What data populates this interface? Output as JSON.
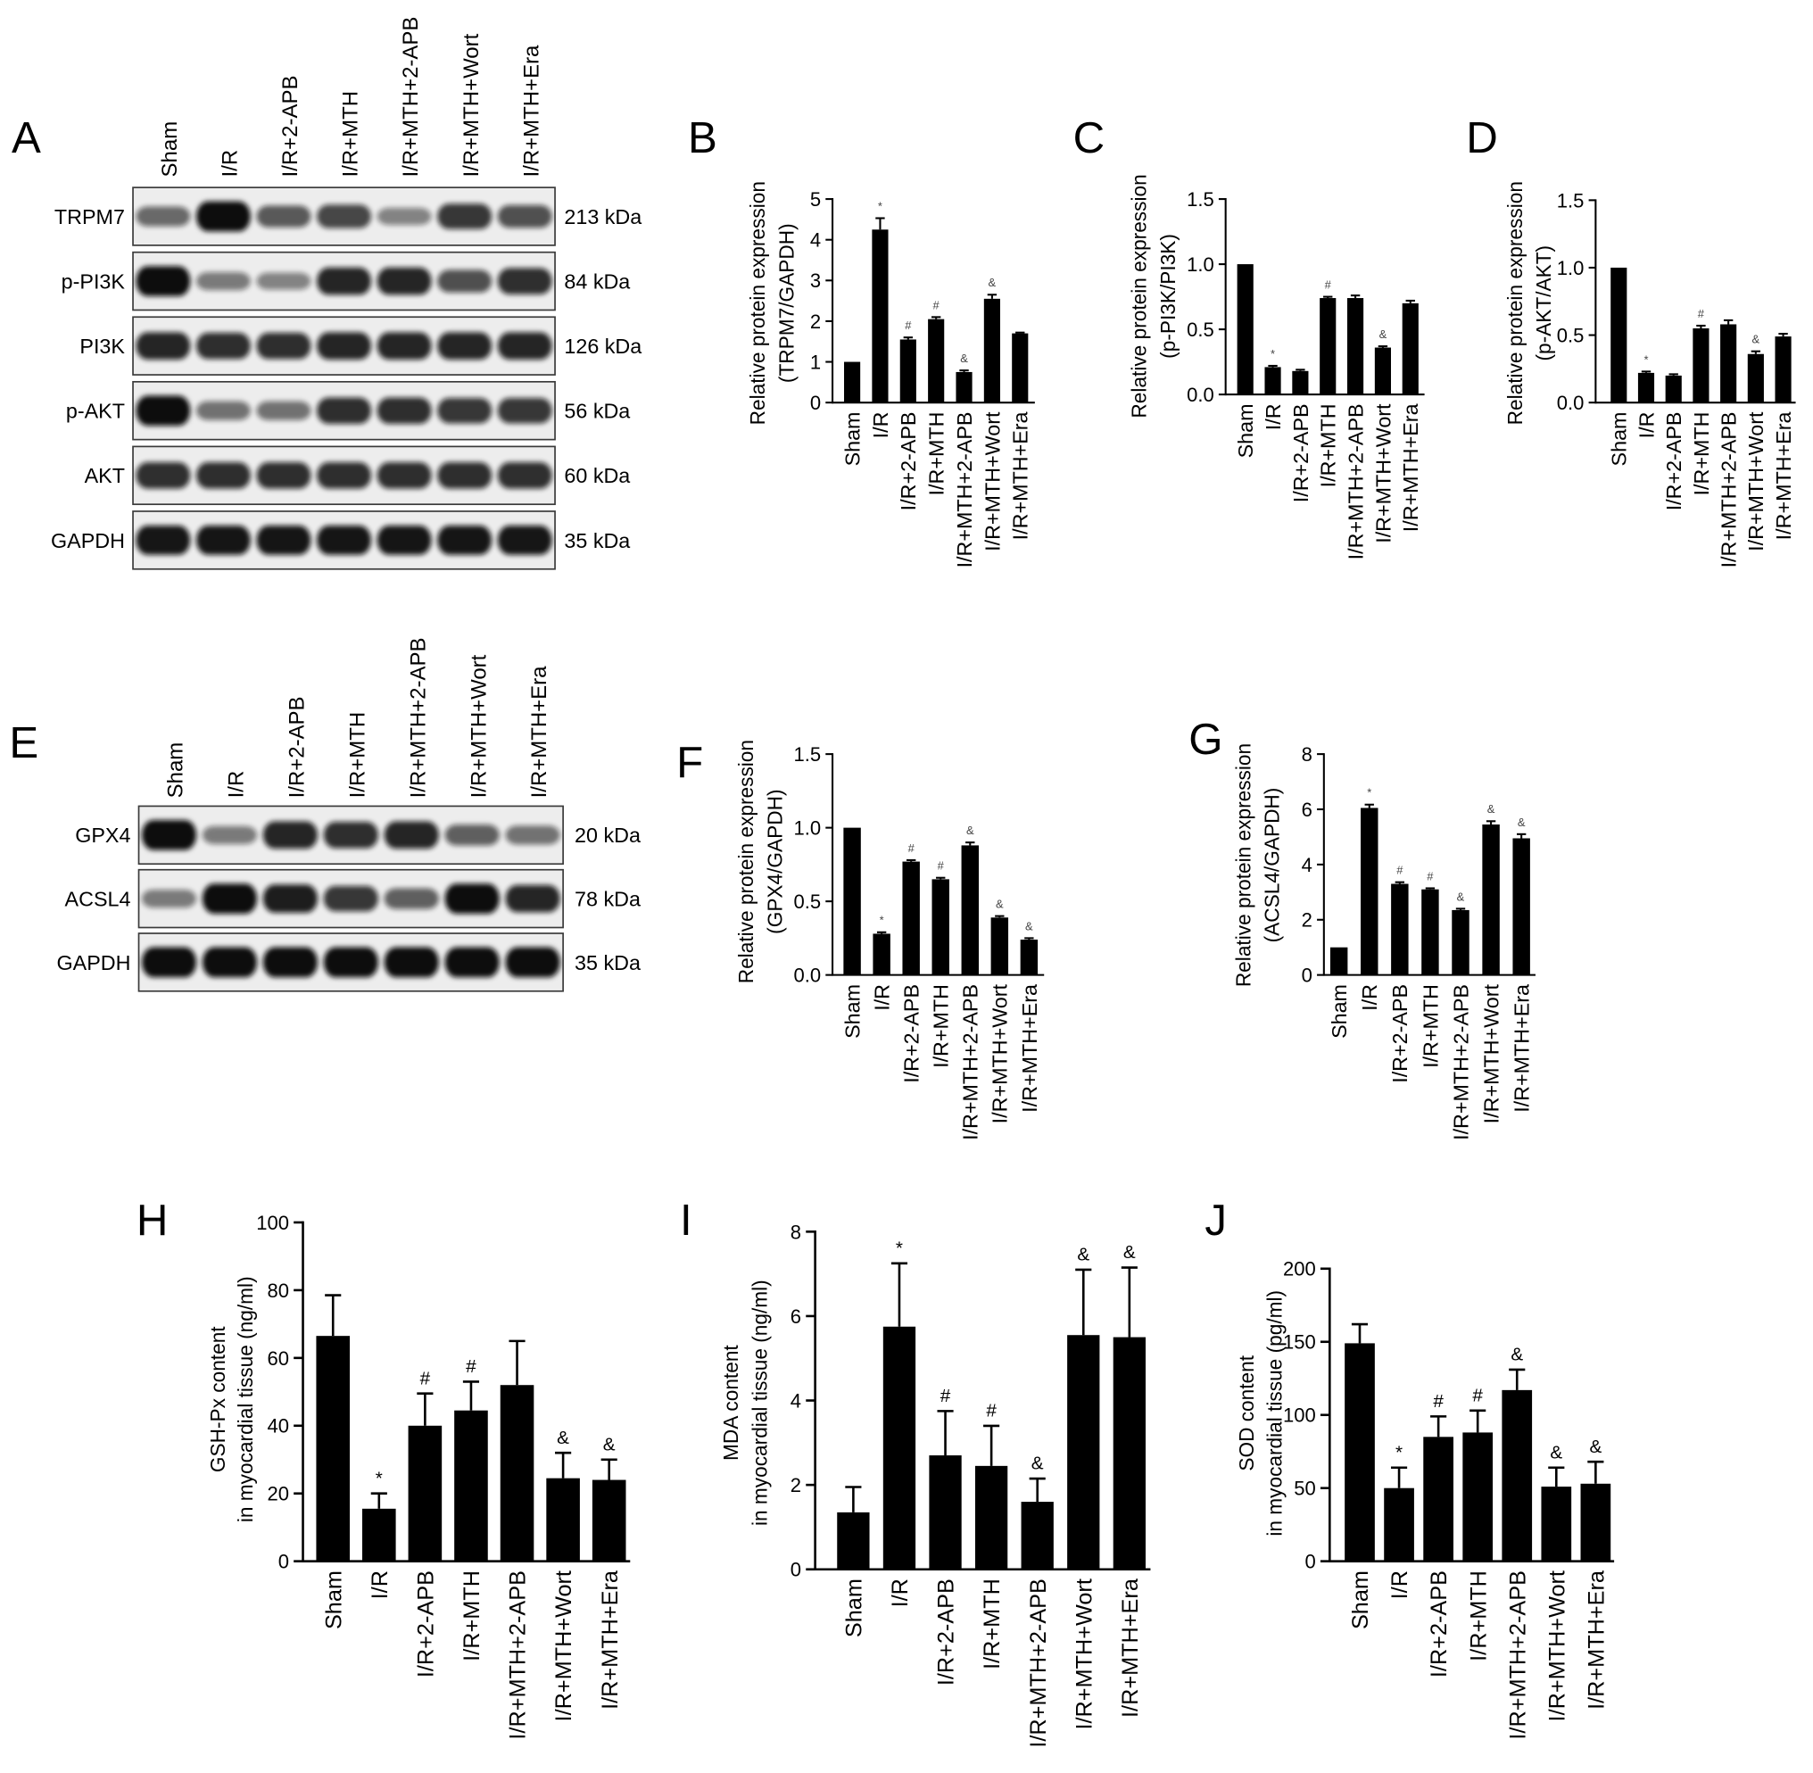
{
  "blots": [
    {
      "id": "A",
      "letter": "A",
      "lanes": [
        "Sham",
        "I/R",
        "I/R+2-APB",
        "I/R+MTH",
        "I/R+MTH+2-APB",
        "I/R+MTH+Wort",
        "I/R+MTH+Era"
      ],
      "rows": [
        {
          "protein": "TRPM7",
          "size": "213 kDa",
          "band_intensity": [
            0.45,
            1.0,
            0.55,
            0.65,
            0.3,
            0.75,
            0.6
          ]
        },
        {
          "protein": "p-PI3K",
          "size": "84 kDa",
          "band_intensity": [
            1.0,
            0.35,
            0.3,
            0.85,
            0.85,
            0.6,
            0.8
          ]
        },
        {
          "protein": "PI3K",
          "size": "126 kDa",
          "band_intensity": [
            0.85,
            0.8,
            0.8,
            0.85,
            0.85,
            0.85,
            0.85
          ]
        },
        {
          "protein": "p-AKT",
          "size": "56 kDa",
          "band_intensity": [
            1.0,
            0.4,
            0.4,
            0.8,
            0.8,
            0.75,
            0.75
          ]
        },
        {
          "protein": "AKT",
          "size": "60 kDa",
          "band_intensity": [
            0.8,
            0.8,
            0.8,
            0.8,
            0.8,
            0.8,
            0.8
          ]
        },
        {
          "protein": "GAPDH",
          "size": "35 kDa",
          "band_intensity": [
            0.95,
            0.95,
            0.95,
            0.95,
            0.95,
            0.95,
            0.95
          ]
        }
      ]
    },
    {
      "id": "E",
      "letter": "E",
      "lanes": [
        "Sham",
        "I/R",
        "I/R+2-APB",
        "I/R+MTH",
        "I/R+MTH+2-APB",
        "I/R+MTH+Wort",
        "I/R+MTH+Era"
      ],
      "rows": [
        {
          "protein": "GPX4",
          "size": "20 kDa",
          "band_intensity": [
            1.0,
            0.35,
            0.85,
            0.8,
            0.85,
            0.5,
            0.4
          ]
        },
        {
          "protein": "ACSL4",
          "size": "78 kDa",
          "band_intensity": [
            0.35,
            1.0,
            0.9,
            0.75,
            0.5,
            1.0,
            0.85
          ]
        },
        {
          "protein": "GAPDH",
          "size": "35 kDa",
          "band_intensity": [
            1.0,
            1.0,
            1.0,
            1.0,
            1.0,
            1.0,
            1.0
          ]
        }
      ]
    }
  ],
  "chart_data": [
    {
      "id": "B",
      "letter": "B",
      "type": "bar",
      "categories": [
        "Sham",
        "I/R",
        "I/R+2-APB",
        "I/R+MTH",
        "I/R+MTH+2-APB",
        "I/R+MTH+Wort",
        "I/R+MTH+Era"
      ],
      "values": [
        1.0,
        4.25,
        1.55,
        2.05,
        0.75,
        2.55,
        1.7
      ],
      "errors": [
        0,
        0.28,
        0.05,
        0.05,
        0.04,
        0.1,
        0.02
      ],
      "annotations": [
        "",
        "*",
        "#",
        "#",
        "&",
        "&",
        ""
      ],
      "ylabel": [
        "Relative protein expression",
        "(TRPM7/GAPDH)"
      ],
      "ylim": [
        0,
        5
      ],
      "yticks": [
        "0",
        "1",
        "2",
        "3",
        "4",
        "5"
      ]
    },
    {
      "id": "C",
      "letter": "C",
      "type": "bar",
      "categories": [
        "Sham",
        "I/R",
        "I/R+2-APB",
        "I/R+MTH",
        "I/R+MTH+2-APB",
        "I/R+MTH+Wort",
        "I/R+MTH+Era"
      ],
      "values": [
        1.0,
        0.21,
        0.18,
        0.74,
        0.74,
        0.36,
        0.7
      ],
      "errors": [
        0,
        0.01,
        0.01,
        0.01,
        0.02,
        0.01,
        0.02
      ],
      "annotations": [
        "",
        "*",
        "",
        "#",
        "",
        "&",
        ""
      ],
      "ylabel": [
        "Relative protein expression",
        "(p-PI3K/PI3K)"
      ],
      "ylim": [
        0,
        1.5
      ],
      "yticks": [
        "0.0",
        "0.5",
        "1.0",
        "1.5"
      ]
    },
    {
      "id": "D",
      "letter": "D",
      "type": "bar",
      "categories": [
        "Sham",
        "I/R",
        "I/R+2-APB",
        "I/R+MTH",
        "I/R+MTH+2-APB",
        "I/R+MTH+Wort",
        "I/R+MTH+Era"
      ],
      "values": [
        1.0,
        0.22,
        0.2,
        0.55,
        0.58,
        0.36,
        0.49
      ],
      "errors": [
        0,
        0.01,
        0.01,
        0.02,
        0.03,
        0.02,
        0.02
      ],
      "annotations": [
        "",
        "*",
        "",
        "#",
        "",
        "&",
        ""
      ],
      "ylabel": [
        "Relative protein expression",
        "(p-AKT/AKT)"
      ],
      "ylim": [
        0,
        1.5
      ],
      "yticks": [
        "0.0",
        "0.5",
        "1.0",
        "1.5"
      ]
    },
    {
      "id": "F",
      "letter": "F",
      "type": "bar",
      "categories": [
        "Sham",
        "I/R",
        "I/R+2-APB",
        "I/R+MTH",
        "I/R+MTH+2-APB",
        "I/R+MTH+Wort",
        "I/R+MTH+Era"
      ],
      "values": [
        1.0,
        0.28,
        0.77,
        0.65,
        0.88,
        0.39,
        0.24
      ],
      "errors": [
        0,
        0.01,
        0.01,
        0.01,
        0.02,
        0.01,
        0.01
      ],
      "annotations": [
        "",
        "*",
        "#",
        "#",
        "&",
        "&",
        "&"
      ],
      "ylabel": [
        "Relative protein expression",
        "(GPX4/GAPDH)"
      ],
      "ylim": [
        0,
        1.5
      ],
      "yticks": [
        "0.0",
        "0.5",
        "1.0",
        "1.5"
      ]
    },
    {
      "id": "G",
      "letter": "G",
      "type": "bar",
      "categories": [
        "Sham",
        "I/R",
        "I/R+2-APB",
        "I/R+MTH",
        "I/R+MTH+2-APB",
        "I/R+MTH+Wort",
        "I/R+MTH+Era"
      ],
      "values": [
        1.0,
        6.05,
        3.3,
        3.1,
        2.35,
        5.45,
        4.95
      ],
      "errors": [
        0,
        0.12,
        0.06,
        0.04,
        0.05,
        0.12,
        0.15
      ],
      "annotations": [
        "",
        "*",
        "#",
        "#",
        "&",
        "&",
        "&"
      ],
      "ylabel": [
        "Relative protein expression",
        "(ACSL4/GAPDH)"
      ],
      "ylim": [
        0,
        8
      ],
      "yticks": [
        "0",
        "2",
        "4",
        "6",
        "8"
      ]
    },
    {
      "id": "H",
      "letter": "H",
      "type": "bar",
      "categories": [
        "Sham",
        "I/R",
        "I/R+2-APB",
        "I/R+MTH",
        "I/R+MTH+2-APB",
        "I/R+MTH+Wort",
        "I/R+MTH+Era"
      ],
      "values": [
        66.5,
        15.5,
        40,
        44.5,
        52,
        24.5,
        24
      ],
      "errors": [
        12,
        4.5,
        9.5,
        8.5,
        13,
        7.5,
        6
      ],
      "annotations": [
        "",
        "*",
        "#",
        "#",
        "",
        "&",
        "&"
      ],
      "ylabel": [
        "GSH-Px content",
        "in myocardial tissue (ng/ml)"
      ],
      "ylim": [
        0,
        100
      ],
      "yticks": [
        "0",
        "20",
        "40",
        "60",
        "80",
        "100"
      ]
    },
    {
      "id": "I",
      "letter": "I",
      "type": "bar",
      "categories": [
        "Sham",
        "I/R",
        "I/R+2-APB",
        "I/R+MTH",
        "I/R+MTH+2-APB",
        "I/R+MTH+Wort",
        "I/R+MTH+Era"
      ],
      "values": [
        1.35,
        5.75,
        2.7,
        2.45,
        1.6,
        5.55,
        5.5
      ],
      "errors": [
        0.6,
        1.5,
        1.05,
        0.95,
        0.55,
        1.55,
        1.65
      ],
      "annotations": [
        "",
        "*",
        "#",
        "#",
        "&",
        "&",
        "&"
      ],
      "ylabel": [
        "MDA content",
        "in myocardial tissue (ng/ml)"
      ],
      "ylim": [
        0,
        8
      ],
      "yticks": [
        "0",
        "2",
        "4",
        "6",
        "8"
      ]
    },
    {
      "id": "J",
      "letter": "J",
      "type": "bar",
      "categories": [
        "Sham",
        "I/R",
        "I/R+2-APB",
        "I/R+MTH",
        "I/R+MTH+2-APB",
        "I/R+MTH+Wort",
        "I/R+MTH+Era"
      ],
      "values": [
        149,
        50,
        85,
        88,
        117,
        51,
        53
      ],
      "errors": [
        13,
        14,
        14,
        15,
        14,
        13,
        15
      ],
      "annotations": [
        "",
        "*",
        "#",
        "#",
        "&",
        "&",
        "&"
      ],
      "ylabel": [
        "SOD content",
        "in myocardial tissue (pg/ml)"
      ],
      "ylim": [
        0,
        200
      ],
      "yticks": [
        "0",
        "50",
        "100",
        "150",
        "200"
      ]
    }
  ]
}
